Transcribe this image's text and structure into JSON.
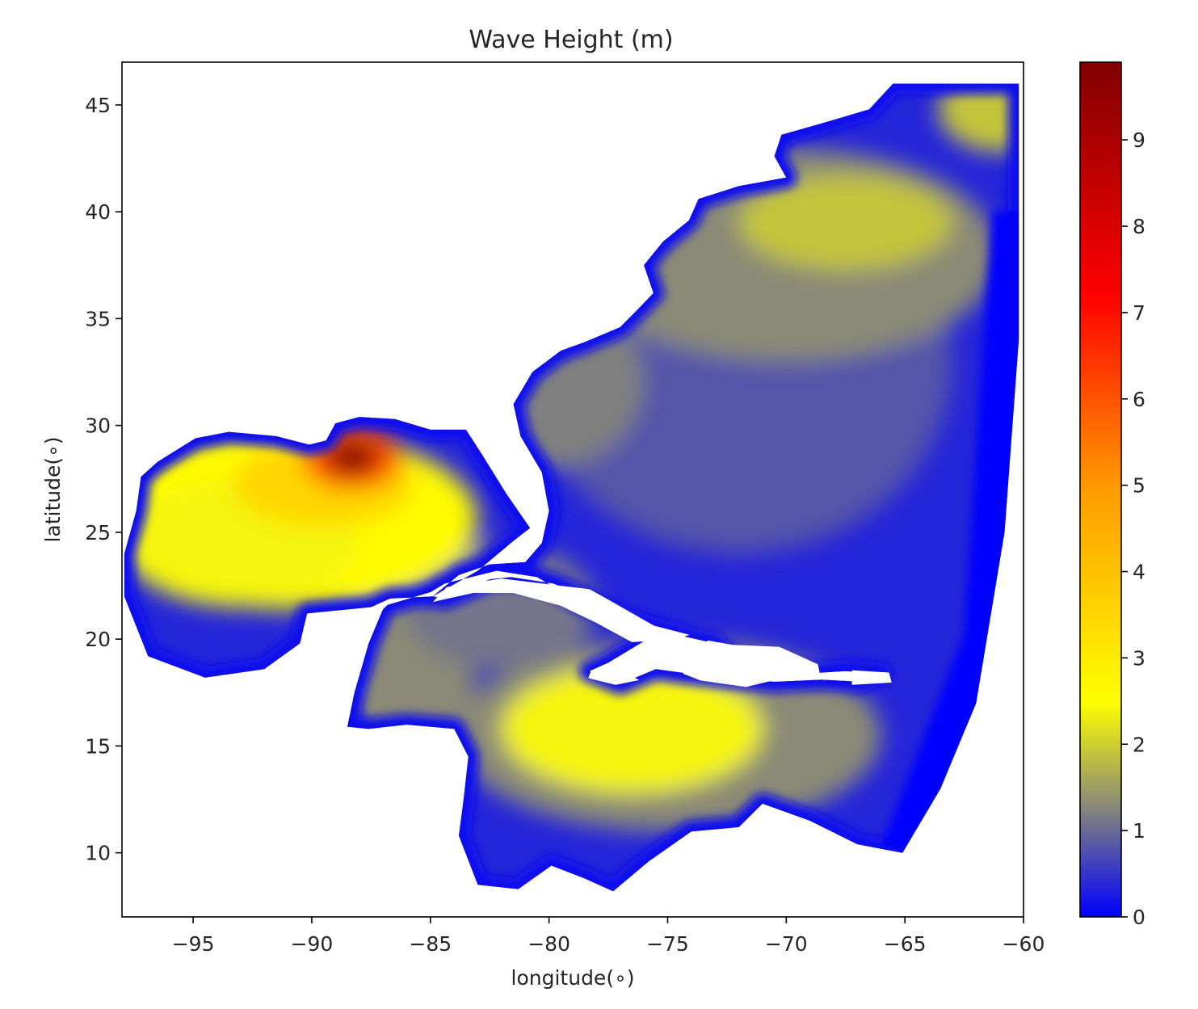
{
  "chart_data": {
    "type": "heatmap",
    "title": "Wave Height (m)",
    "xlabel": "longitude(∘)",
    "ylabel": "latitude(∘)",
    "xlim": [
      -98,
      -60
    ],
    "ylim": [
      7,
      47
    ],
    "xticks": [
      -95,
      -90,
      -85,
      -80,
      -75,
      -70,
      -65,
      -60
    ],
    "xtick_labels": [
      "−95",
      "−90",
      "−85",
      "−80",
      "−75",
      "−70",
      "−65",
      "−60"
    ],
    "yticks": [
      10,
      15,
      20,
      25,
      30,
      35,
      40,
      45
    ],
    "ytick_labels": [
      "10",
      "15",
      "20",
      "25",
      "30",
      "35",
      "40",
      "45"
    ],
    "grid": false,
    "colorbar": {
      "min": 0,
      "max": 9.9,
      "ticks": [
        0,
        1,
        2,
        3,
        4,
        5,
        6,
        7,
        8,
        9
      ],
      "tick_labels": [
        "0",
        "1",
        "2",
        "3",
        "4",
        "5",
        "6",
        "7",
        "8",
        "9"
      ],
      "colormap": [
        {
          "value": 0.0,
          "color": "#0000ff"
        },
        {
          "value": 1.2,
          "color": "#808080"
        },
        {
          "value": 2.5,
          "color": "#ffff00"
        },
        {
          "value": 5.0,
          "color": "#ff9900"
        },
        {
          "value": 7.2,
          "color": "#ff0000"
        },
        {
          "value": 9.9,
          "color": "#800000"
        }
      ]
    },
    "field_peaks": [
      {
        "lon": -88.3,
        "lat": 28.5,
        "value": 9.8
      },
      {
        "lon": -76.5,
        "lat": 15.8,
        "value": 2.4
      },
      {
        "lon": -67.5,
        "lat": 39.5,
        "value": 1.9
      },
      {
        "lon": -60.8,
        "lat": 45.0,
        "value": 1.9
      },
      {
        "lon": -77.5,
        "lat": 31.0,
        "value": 1.2
      }
    ],
    "domain_min_value": 0
  }
}
